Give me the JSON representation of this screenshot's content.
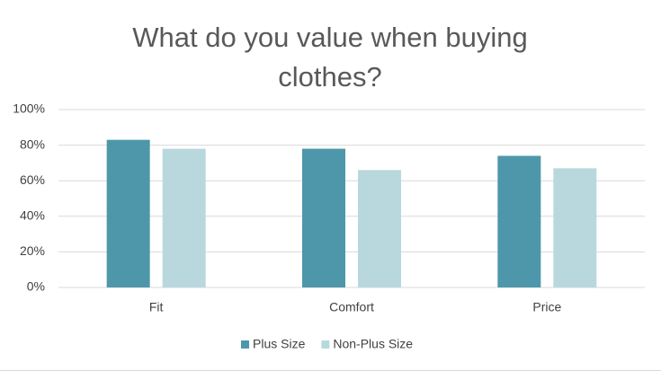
{
  "chart_data": {
    "type": "bar",
    "title": "What do you value when buying clothes?",
    "categories": [
      "Fit",
      "Comfort",
      "Price"
    ],
    "series": [
      {
        "name": "Plus Size",
        "color": "#4e97ab",
        "values": [
          83,
          78,
          74
        ]
      },
      {
        "name": "Non-Plus Size",
        "color": "#b8d8de",
        "values": [
          78,
          66,
          67
        ]
      }
    ],
    "ylim": [
      0,
      100
    ],
    "yticks": [
      {
        "value": 0,
        "label": "0%"
      },
      {
        "value": 20,
        "label": "20%"
      },
      {
        "value": 40,
        "label": "40%"
      },
      {
        "value": 60,
        "label": "60%"
      },
      {
        "value": 80,
        "label": "80%"
      },
      {
        "value": 100,
        "label": "100%"
      }
    ],
    "grid": true,
    "legend": "bottom"
  }
}
